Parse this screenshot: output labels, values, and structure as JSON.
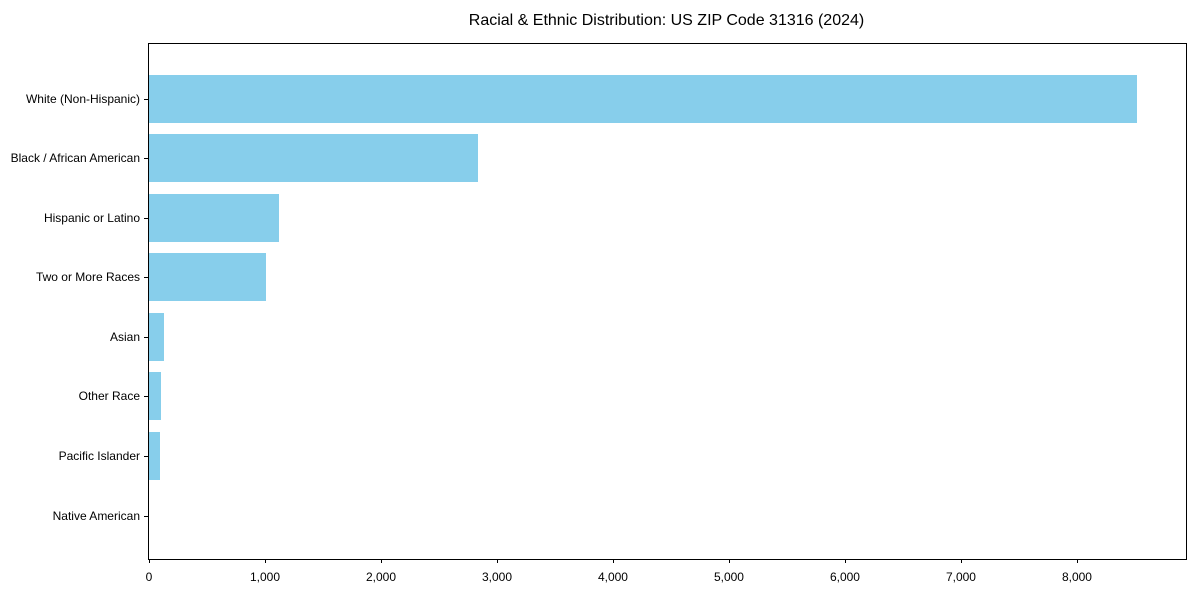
{
  "chart_data": {
    "type": "bar",
    "orientation": "horizontal",
    "title": "Racial & Ethnic Distribution: US ZIP Code 31316 (2024)",
    "categories": [
      "White (Non-Hispanic)",
      "Black / African American",
      "Hispanic or Latino",
      "Two or More Races",
      "Asian",
      "Other Race",
      "Pacific Islander",
      "Native American"
    ],
    "values": [
      8520,
      2835,
      1125,
      1010,
      130,
      107,
      95,
      0
    ],
    "xlabel": "",
    "ylabel": "",
    "xlim": [
      0,
      8940
    ],
    "xticks": [
      0,
      1000,
      2000,
      3000,
      4000,
      5000,
      6000,
      7000,
      8000
    ],
    "xtick_labels": [
      "0",
      "1,000",
      "2,000",
      "3,000",
      "4,000",
      "5,000",
      "6,000",
      "7,000",
      "8,000"
    ],
    "bar_color": "#87CEEB",
    "spine_color": "#000000",
    "text_color": "#000000",
    "background_color": "#ffffff",
    "grid": false,
    "legend": "none"
  }
}
